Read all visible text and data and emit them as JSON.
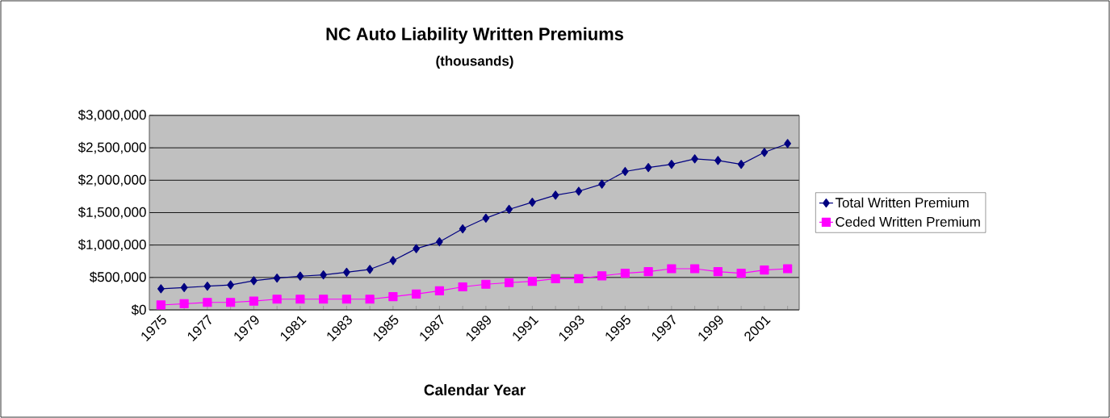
{
  "chart_data": {
    "type": "line",
    "title": "NC Auto Liability Written Premiums",
    "subtitle": "(thousands)",
    "xlabel": "Calendar Year",
    "categories": [
      "1975",
      null,
      "1977",
      null,
      "1979",
      null,
      "1981",
      null,
      "1983",
      null,
      "1985",
      null,
      "1987",
      null,
      "1989",
      null,
      "1991",
      null,
      "1993",
      null,
      "1995",
      null,
      "1997",
      null,
      "1999",
      null,
      "2001",
      null
    ],
    "series": [
      {
        "name": "Total Written Premium",
        "color": "#000080",
        "marker": "diamond",
        "values": [
          325000,
          345000,
          365000,
          385000,
          450000,
          490000,
          520000,
          540000,
          580000,
          625000,
          760000,
          945000,
          1050000,
          1250000,
          1415000,
          1550000,
          1660000,
          1770000,
          1830000,
          1940000,
          2135000,
          2195000,
          2245000,
          2330000,
          2305000,
          2245000,
          2430000,
          2565000
        ]
      },
      {
        "name": "Ceded Written Premium",
        "color": "#ff00ff",
        "marker": "square",
        "values": [
          75000,
          95000,
          115000,
          115000,
          135000,
          165000,
          165000,
          165000,
          165000,
          165000,
          205000,
          245000,
          295000,
          355000,
          395000,
          420000,
          440000,
          480000,
          480000,
          525000,
          565000,
          590000,
          635000,
          635000,
          590000,
          565000,
          615000,
          635000
        ]
      }
    ],
    "ylim": [
      0,
      3000000
    ],
    "yticks": [
      {
        "value": 0,
        "label": "$0"
      },
      {
        "value": 500000,
        "label": "$500,000"
      },
      {
        "value": 1000000,
        "label": "$1,000,000"
      },
      {
        "value": 1500000,
        "label": "$1,500,000"
      },
      {
        "value": 2000000,
        "label": "$2,000,000"
      },
      {
        "value": 2500000,
        "label": "$2,500,000"
      },
      {
        "value": 3000000,
        "label": "$3,000,000"
      }
    ],
    "grid": "y",
    "legend": "right"
  }
}
